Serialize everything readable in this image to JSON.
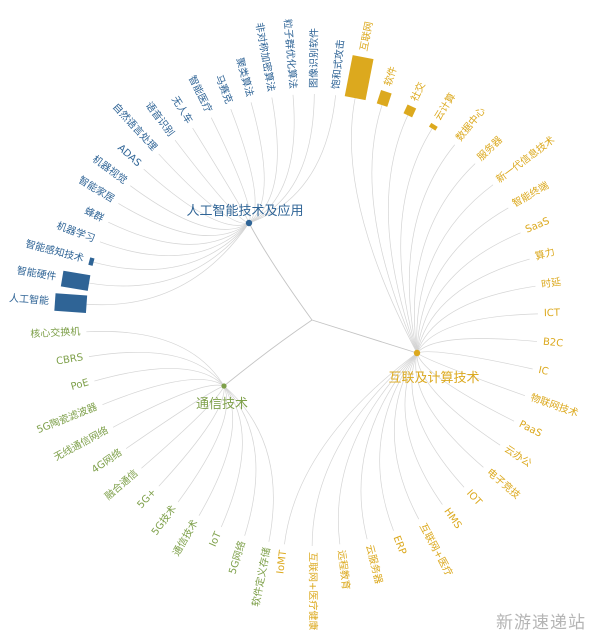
{
  "colors": {
    "ai": "#2f6496",
    "internet": "#dca91e",
    "telecom": "#7ea04a"
  },
  "hubs": {
    "ai": "人工智能技术及应用",
    "internet": "互联及计算技术",
    "telecom": "通信技术"
  },
  "clusters": {
    "ai": {
      "leaves": [
        {
          "label": "人工智能",
          "weight": 0.72
        },
        {
          "label": "智能硬件",
          "weight": 0.62
        },
        {
          "label": "智能感知技术",
          "weight": 0.1
        },
        {
          "label": "机器学习",
          "weight": 0
        },
        {
          "label": "蜂群",
          "weight": 0
        },
        {
          "label": "智能家居",
          "weight": 0
        },
        {
          "label": "机器视觉",
          "weight": 0
        },
        {
          "label": "ADAS",
          "weight": 0
        },
        {
          "label": "自然语言处理",
          "weight": 0
        },
        {
          "label": "语音识别",
          "weight": 0
        },
        {
          "label": "无人车",
          "weight": 0
        },
        {
          "label": "智能医疗",
          "weight": 0
        },
        {
          "label": "马赛克",
          "weight": 0
        },
        {
          "label": "聚类算法",
          "weight": 0
        },
        {
          "label": "非对称加密算法",
          "weight": 0
        },
        {
          "label": "粒子群优化算法",
          "weight": 0
        },
        {
          "label": "图像识别软件",
          "weight": 0
        },
        {
          "label": "饱和式攻击",
          "weight": 0
        }
      ]
    },
    "internet": {
      "leaves": [
        {
          "label": "互联网",
          "weight": 0.95
        },
        {
          "label": "软件",
          "weight": 0.32
        },
        {
          "label": "社交",
          "weight": 0.22
        },
        {
          "label": "云计算",
          "weight": 0.1
        },
        {
          "label": "数据中心",
          "weight": 0
        },
        {
          "label": "服务器",
          "weight": 0
        },
        {
          "label": "新一代信息技术",
          "weight": 0
        },
        {
          "label": "智能终端",
          "weight": 0
        },
        {
          "label": "SaaS",
          "weight": 0
        },
        {
          "label": "算力",
          "weight": 0
        },
        {
          "label": "时延",
          "weight": 0
        },
        {
          "label": "ICT",
          "weight": 0
        },
        {
          "label": "B2C",
          "weight": 0
        },
        {
          "label": "IC",
          "weight": 0
        },
        {
          "label": "物联网技术",
          "weight": 0
        },
        {
          "label": "PaaS",
          "weight": 0
        },
        {
          "label": "云办公",
          "weight": 0
        },
        {
          "label": "电子竞技",
          "weight": 0
        },
        {
          "label": "IOT",
          "weight": 0
        },
        {
          "label": "HMS",
          "weight": 0
        },
        {
          "label": "互联网+医疗",
          "weight": 0
        },
        {
          "label": "ERP",
          "weight": 0
        },
        {
          "label": "云服务器",
          "weight": 0
        },
        {
          "label": "远程教育",
          "weight": 0
        },
        {
          "label": "互联网+医疗健康",
          "weight": 0
        },
        {
          "label": "IoMT",
          "weight": 0
        }
      ]
    },
    "telecom": {
      "leaves": [
        {
          "label": "软件定义存储",
          "weight": 0
        },
        {
          "label": "5G网络",
          "weight": 0
        },
        {
          "label": "IoT",
          "weight": 0
        },
        {
          "label": "通信技术",
          "weight": 0
        },
        {
          "label": "5G技术",
          "weight": 0
        },
        {
          "label": "5G+",
          "weight": 0
        },
        {
          "label": "融合通信",
          "weight": 0
        },
        {
          "label": "4G网络",
          "weight": 0
        },
        {
          "label": "无线通信网络",
          "weight": 0
        },
        {
          "label": "5G陶瓷滤波器",
          "weight": 0
        },
        {
          "label": "PoE",
          "weight": 0
        },
        {
          "label": "CBRS",
          "weight": 0
        },
        {
          "label": "核心交换机",
          "weight": 0
        }
      ]
    }
  },
  "watermark": "新游速递站"
}
